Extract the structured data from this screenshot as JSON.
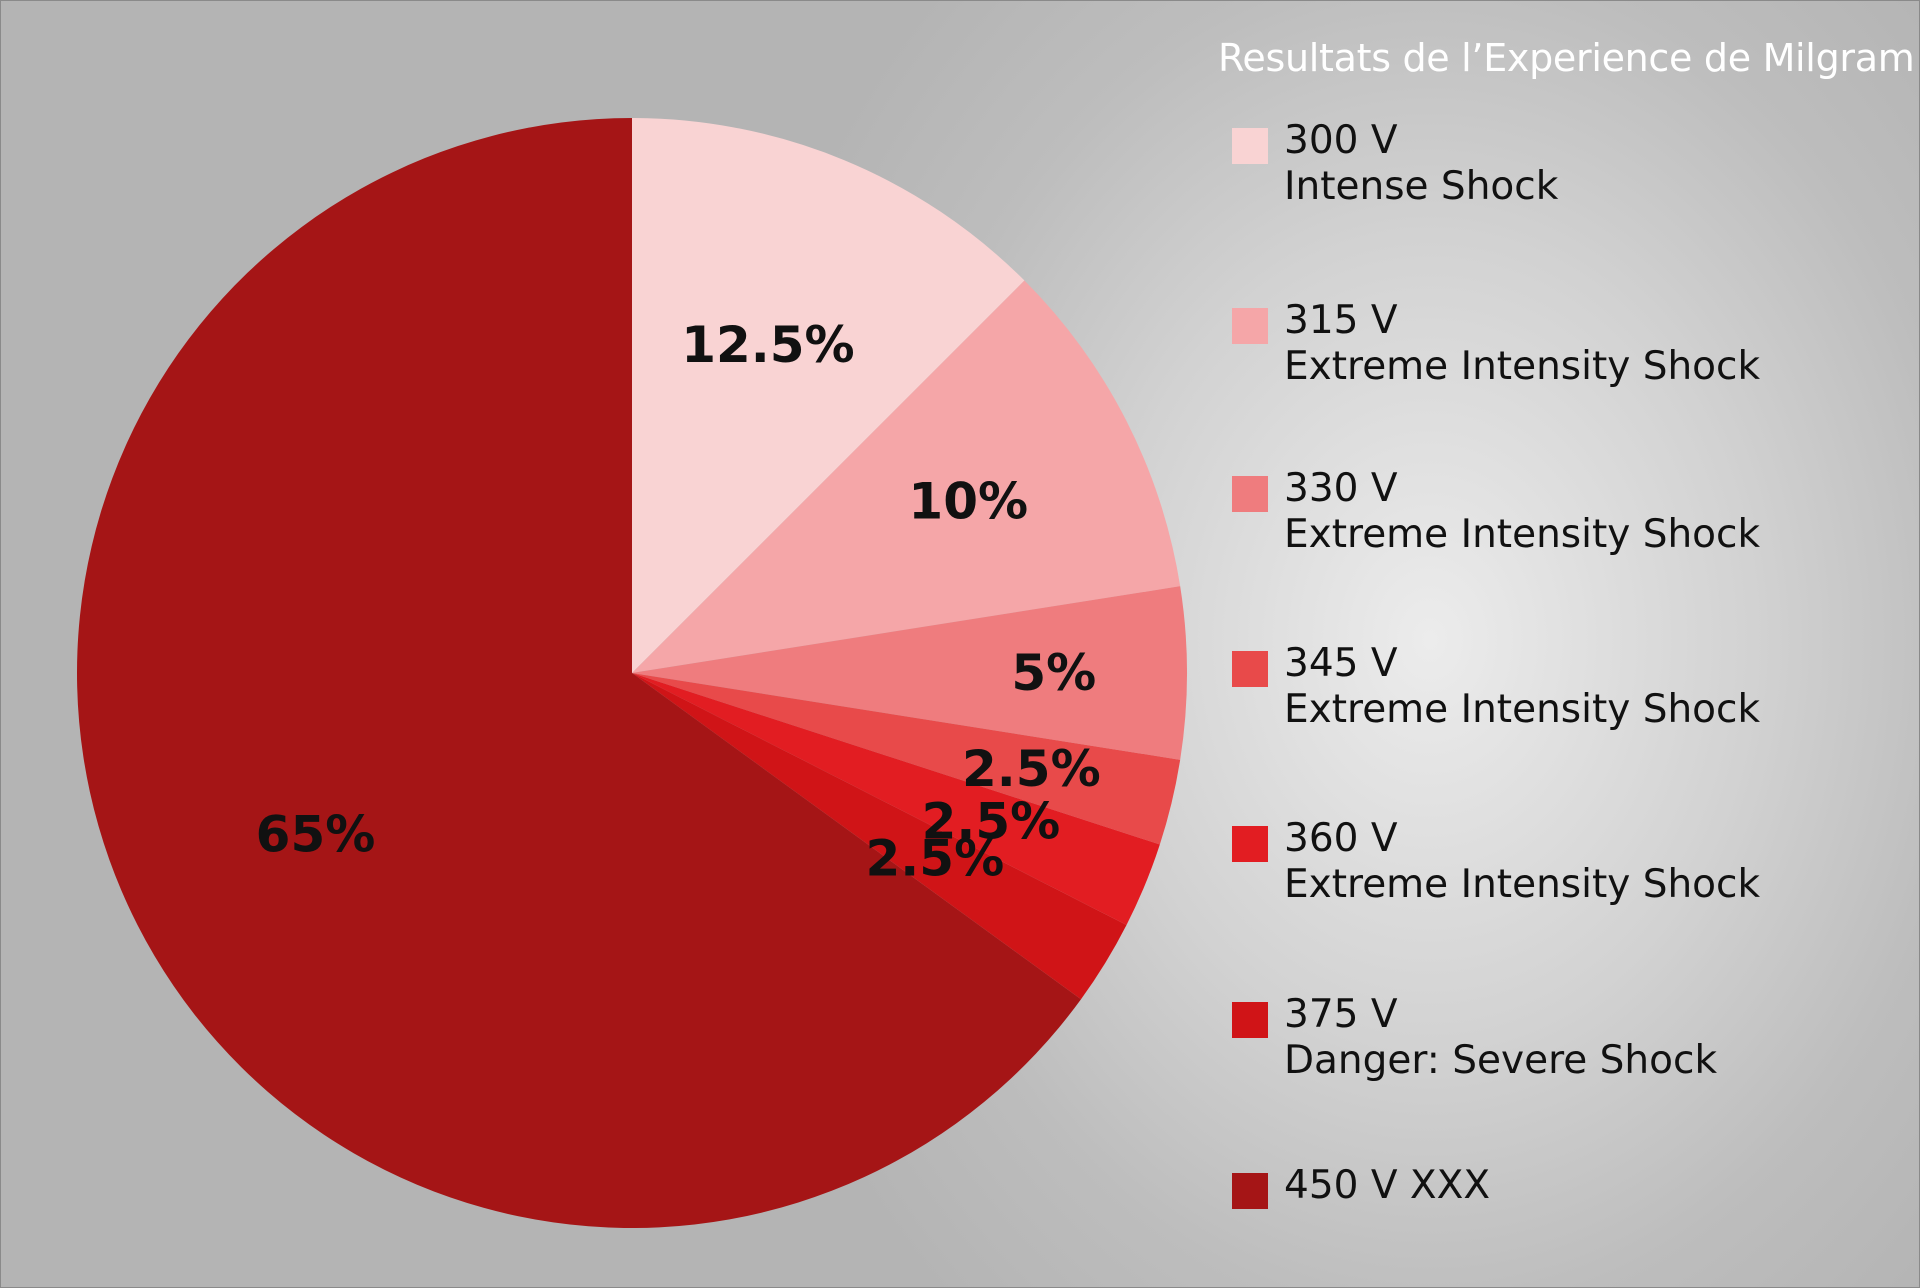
{
  "chart_data": {
    "type": "pie",
    "title": "Resultats de l’Experience de Milgram",
    "slices": [
      {
        "voltage": "300 V",
        "description": "Intense Shock",
        "value": 12.5,
        "label": "12.5%",
        "color": "#f9d3d3"
      },
      {
        "voltage": "315 V",
        "description": "Extreme Intensity Shock",
        "value": 10,
        "label": "10%",
        "color": "#f5a6a8"
      },
      {
        "voltage": "330 V",
        "description": "Extreme Intensity Shock",
        "value": 5,
        "label": "5%",
        "color": "#ef7c7e"
      },
      {
        "voltage": "345 V",
        "description": "Extreme Intensity Shock",
        "value": 2.5,
        "label": "2.5%",
        "color": "#e84a4a"
      },
      {
        "voltage": "360 V",
        "description": "Extreme Intensity Shock",
        "value": 2.5,
        "label": "2.5%",
        "color": "#e21d22"
      },
      {
        "voltage": "375 V",
        "description": "Danger: Severe Shock",
        "value": 2.5,
        "label": "2.5%",
        "color": "#d01417"
      },
      {
        "voltage": "450 V XXX",
        "description": "",
        "value": 65,
        "label": "65%",
        "color": "#a51516"
      }
    ],
    "start_angle": "12 o'clock",
    "direction": "clockwise",
    "legend_position": "right"
  }
}
